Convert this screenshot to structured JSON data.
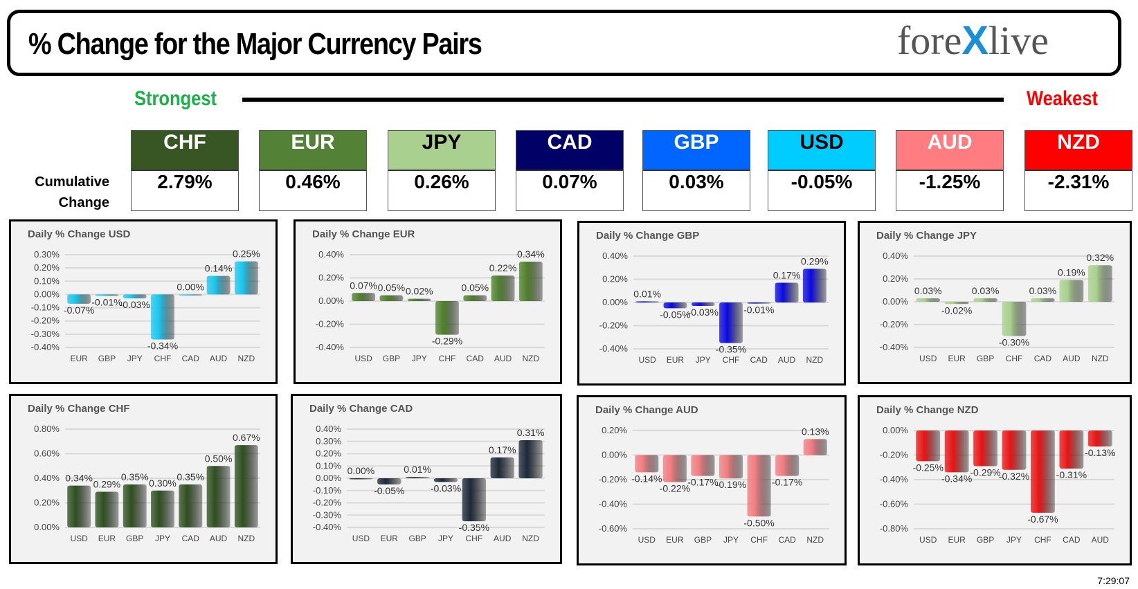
{
  "header": {
    "title": "% Change for the Major Currency Pairs",
    "logo": "forexlive"
  },
  "scale": {
    "strongest": "Strongest",
    "weakest": "Weakest"
  },
  "cumulative": {
    "label_line1": "Cumulative",
    "label_line2": "Change",
    "items": [
      {
        "currency": "CHF",
        "value": "2.79%",
        "color": "#375623",
        "text_color": "#ffffff"
      },
      {
        "currency": "EUR",
        "value": "0.46%",
        "color": "#538135",
        "text_color": "#ffffff"
      },
      {
        "currency": "JPY",
        "value": "0.26%",
        "color": "#a9d08e",
        "text_color": "#000000"
      },
      {
        "currency": "CAD",
        "value": "0.07%",
        "color": "#000066",
        "text_color": "#ffffff"
      },
      {
        "currency": "GBP",
        "value": "0.03%",
        "color": "#0066ff",
        "text_color": "#ffffff"
      },
      {
        "currency": "USD",
        "value": "-0.05%",
        "color": "#00ccff",
        "text_color": "#000000"
      },
      {
        "currency": "AUD",
        "value": "-1.25%",
        "color": "#ff7c80",
        "text_color": "#ffffff"
      },
      {
        "currency": "NZD",
        "value": "-2.31%",
        "color": "#ff0000",
        "text_color": "#ffffff"
      }
    ]
  },
  "timestamp": "7:29:07",
  "chart_data": [
    {
      "type": "bar",
      "title": "Daily % Change USD",
      "categories": [
        "EUR",
        "GBP",
        "JPY",
        "CHF",
        "CAD",
        "AUD",
        "NZD"
      ],
      "values": [
        -0.07,
        -0.01,
        -0.03,
        -0.34,
        0.0,
        0.14,
        0.25
      ],
      "labels": [
        "-0.07%",
        "-0.01%",
        "-0.03%",
        "-0.34%",
        "0.00%",
        "0.14%",
        "0.25%"
      ],
      "ylim": [
        -0.4,
        0.3
      ],
      "ystep": 0.1,
      "color": "#1ac6ee",
      "grid": true
    },
    {
      "type": "bar",
      "title": "Daily % Change EUR",
      "categories": [
        "USD",
        "GBP",
        "JPY",
        "CHF",
        "CAD",
        "AUD",
        "NZD"
      ],
      "values": [
        0.07,
        0.05,
        0.02,
        -0.29,
        0.05,
        0.22,
        0.34
      ],
      "labels": [
        "0.07%",
        "0.05%",
        "0.02%",
        "-0.29%",
        "0.05%",
        "0.22%",
        "0.34%"
      ],
      "ylim": [
        -0.4,
        0.4
      ],
      "ystep": 0.2,
      "color": "#4f7f2c",
      "grid": true
    },
    {
      "type": "bar",
      "title": "Daily % Change GBP",
      "categories": [
        "USD",
        "EUR",
        "JPY",
        "CHF",
        "CAD",
        "AUD",
        "NZD"
      ],
      "values": [
        0.01,
        -0.05,
        -0.03,
        -0.35,
        -0.01,
        0.17,
        0.29
      ],
      "labels": [
        "0.01%",
        "-0.05%",
        "-0.03%",
        "-0.35%",
        "-0.01%",
        "0.17%",
        "0.29%"
      ],
      "ylim": [
        -0.4,
        0.4
      ],
      "ystep": 0.2,
      "color": "#0a0ae0",
      "grid": true
    },
    {
      "type": "bar",
      "title": "Daily % Change JPY",
      "categories": [
        "USD",
        "EUR",
        "GBP",
        "CHF",
        "CAD",
        "AUD",
        "NZD"
      ],
      "values": [
        0.03,
        -0.02,
        0.03,
        -0.3,
        0.03,
        0.19,
        0.32
      ],
      "labels": [
        "0.03%",
        "-0.02%",
        "0.03%",
        "-0.30%",
        "0.03%",
        "0.19%",
        "0.32%"
      ],
      "ylim": [
        -0.4,
        0.4
      ],
      "ystep": 0.2,
      "color": "#a9d08e",
      "grid": true
    },
    {
      "type": "bar",
      "title": "Daily % Change CHF",
      "categories": [
        "USD",
        "EUR",
        "GBP",
        "JPY",
        "CAD",
        "AUD",
        "NZD"
      ],
      "values": [
        0.34,
        0.29,
        0.35,
        0.3,
        0.35,
        0.5,
        0.67
      ],
      "labels": [
        "0.34%",
        "0.29%",
        "0.35%",
        "0.30%",
        "0.35%",
        "0.50%",
        "0.67%"
      ],
      "ylim": [
        0,
        0.8
      ],
      "ystep": 0.2,
      "color": "#2f5020",
      "grid": true
    },
    {
      "type": "bar",
      "title": "Daily % Change CAD",
      "categories": [
        "USD",
        "EUR",
        "GBP",
        "JPY",
        "CHF",
        "AUD",
        "NZD"
      ],
      "values": [
        0.0,
        -0.05,
        0.01,
        -0.03,
        -0.35,
        0.17,
        0.31
      ],
      "labels": [
        "0.00%",
        "-0.05%",
        "0.01%",
        "-0.03%",
        "-0.35%",
        "0.17%",
        "0.31%"
      ],
      "ylim": [
        -0.4,
        0.4
      ],
      "ystep": 0.1,
      "color": "#1e2838",
      "grid": true
    },
    {
      "type": "bar",
      "title": "Daily % Change AUD",
      "categories": [
        "USD",
        "EUR",
        "GBP",
        "JPY",
        "CHF",
        "CAD",
        "NZD"
      ],
      "values": [
        -0.14,
        -0.22,
        -0.17,
        -0.19,
        -0.5,
        -0.17,
        0.13
      ],
      "labels": [
        "-0.14%",
        "-0.22%",
        "-0.17%",
        "-0.19%",
        "-0.50%",
        "-0.17%",
        "0.13%"
      ],
      "ylim": [
        -0.6,
        0.2
      ],
      "ystep": 0.2,
      "color": "#f07c80",
      "grid": true
    },
    {
      "type": "bar",
      "title": "Daily % Change NZD",
      "categories": [
        "USD",
        "EUR",
        "GBP",
        "JPY",
        "CHF",
        "CAD",
        "AUD"
      ],
      "values": [
        -0.25,
        -0.34,
        -0.29,
        -0.32,
        -0.67,
        -0.31,
        -0.13
      ],
      "labels": [
        "-0.25%",
        "-0.34%",
        "-0.29%",
        "-0.32%",
        "-0.67%",
        "-0.31%",
        "-0.13%"
      ],
      "ylim": [
        -0.8,
        0
      ],
      "ystep": 0.2,
      "color": "#e81414",
      "grid": true
    }
  ]
}
